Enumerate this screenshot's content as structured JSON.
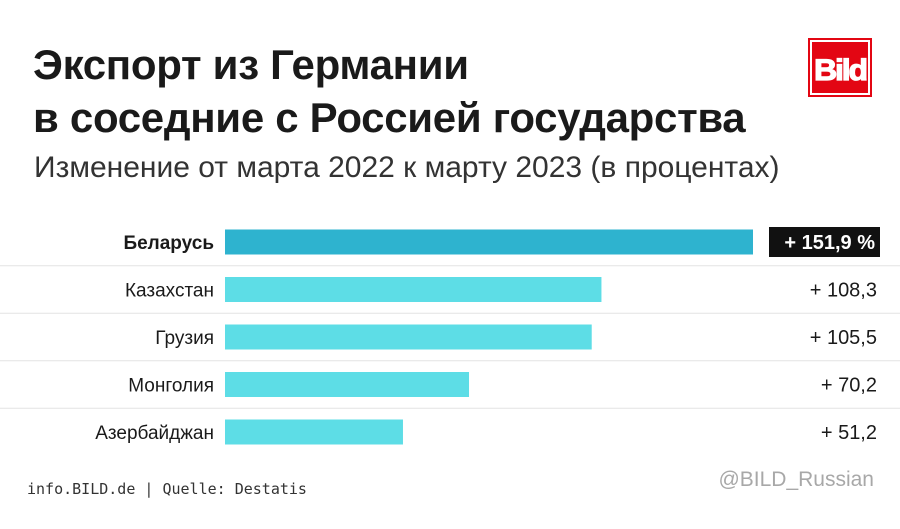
{
  "header": {
    "title_line1": "Экспорт из Германии",
    "title_line2": "в соседние с Россией государства",
    "subtitle": "Изменение от марта 2022 к марту 2023 (в процентах)"
  },
  "logo": {
    "text": "Bild",
    "color": "#e30613"
  },
  "chart_data": {
    "type": "bar",
    "orientation": "horizontal",
    "categories": [
      "Беларусь",
      "Казахстан",
      "Грузия",
      "Монголия",
      "Азербайджан"
    ],
    "values": [
      151.9,
      108.3,
      105.5,
      70.2,
      51.2
    ],
    "value_labels": [
      "+ 151,9 %",
      "+ 108,3",
      "+ 105,5",
      "+ 70,2",
      "+ 51,2"
    ],
    "highlight_index": 0,
    "colors": {
      "highlight": "#2eb3cf",
      "bar": "#5ddde6",
      "label_box": "#111111"
    },
    "xlim": [
      0,
      151.9
    ],
    "grid": false
  },
  "footer": {
    "source": "info.BILD.de | Quelle: Destatis",
    "handle": "@BILD_Russian"
  }
}
